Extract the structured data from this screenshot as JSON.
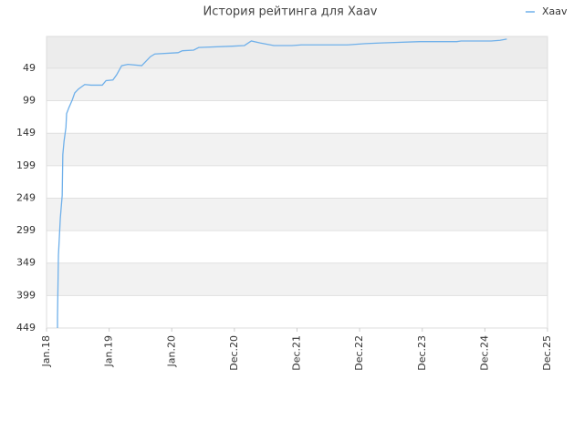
{
  "chart_data": {
    "type": "line",
    "title": "История рейтинга для Xaav",
    "series": [
      {
        "name": "Xaav",
        "color": "#6fb0ea",
        "x": [
          0.175,
          0.175,
          0.19,
          0.22,
          0.25,
          0.26,
          0.28,
          0.31,
          0.32,
          0.36,
          0.41,
          0.45,
          0.51,
          0.61,
          0.71,
          0.89,
          0.95,
          1.06,
          1.12,
          1.2,
          1.3,
          1.52,
          1.59,
          1.66,
          1.73,
          2.1,
          2.17,
          2.35,
          2.43,
          2.97,
          3.16,
          3.27,
          3.41,
          3.63,
          3.92,
          4.07,
          4.8,
          5.09,
          5.35,
          5.96,
          6.55,
          6.62,
          7.1,
          7.24,
          7.35
        ],
        "values": [
          449,
          432,
          337,
          280,
          245,
          182,
          161,
          140,
          119,
          109,
          98,
          87,
          81,
          74,
          75,
          75,
          68,
          67,
          59,
          45,
          43,
          45,
          38,
          31,
          27,
          25,
          22,
          21,
          17,
          15,
          14,
          7,
          10,
          14,
          14,
          13,
          13,
          11,
          10,
          8,
          8,
          7,
          7,
          6,
          4
        ]
      }
    ],
    "ylim": [
      449,
      0
    ],
    "yticks": [
      49,
      99,
      149,
      199,
      249,
      299,
      349,
      399,
      449
    ],
    "xlim": [
      0,
      8
    ],
    "xticks": [
      {
        "value": 0,
        "label": "Jan.18"
      },
      {
        "value": 1,
        "label": "Jan.19"
      },
      {
        "value": 2,
        "label": "Jan.20"
      },
      {
        "value": 3,
        "label": "Dec.20"
      },
      {
        "value": 4,
        "label": "Dec.21"
      },
      {
        "value": 5,
        "label": "Dec.22"
      },
      {
        "value": 6,
        "label": "Dec.23"
      },
      {
        "value": 7,
        "label": "Dec.24"
      },
      {
        "value": 8,
        "label": "Dec.25"
      }
    ],
    "bands": true,
    "legend": "top-right"
  }
}
